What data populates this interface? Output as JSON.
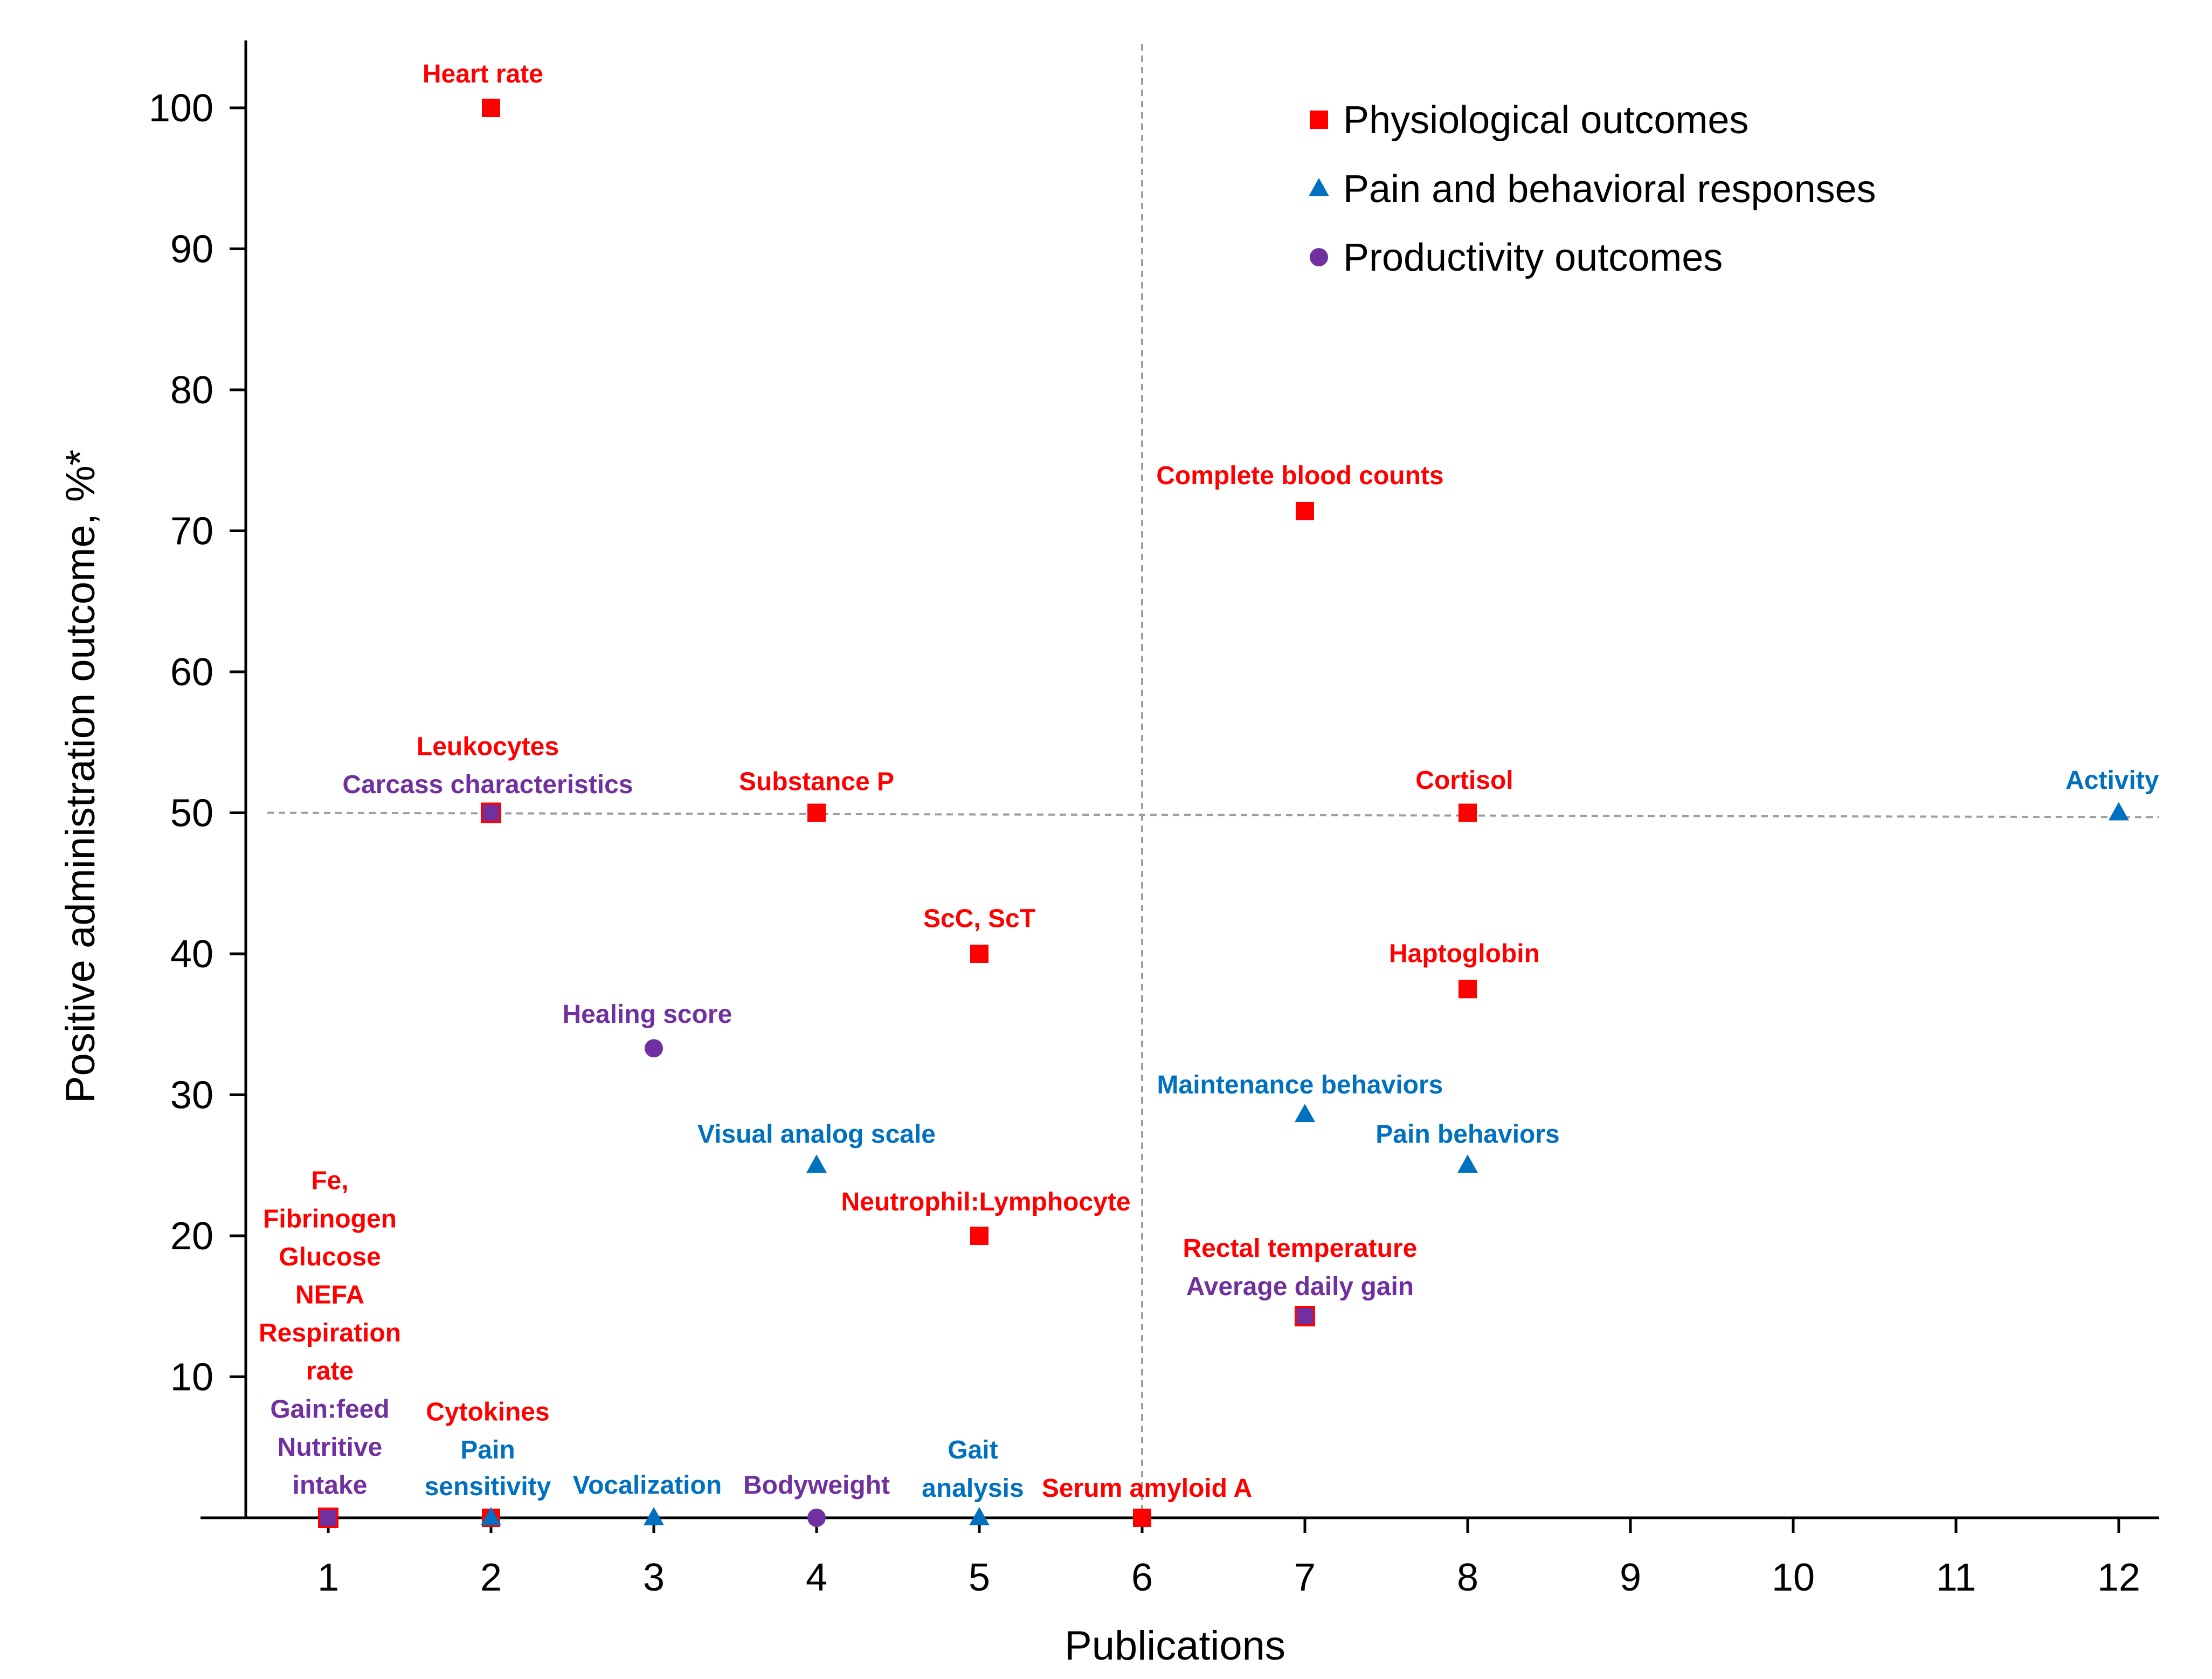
{
  "chart_data": {
    "type": "scatter",
    "title": "",
    "xlabel": "Publications",
    "ylabel": "Positive administration outcome, %*",
    "xlim": [
      0.5,
      12.5
    ],
    "ylim": [
      -3,
      105
    ],
    "xticks": [
      1,
      2,
      3,
      4,
      5,
      6,
      7,
      8,
      9,
      10,
      11,
      12
    ],
    "yticks": [
      10,
      20,
      30,
      40,
      50,
      60,
      70,
      80,
      90,
      100
    ],
    "reference_lines": {
      "x": 6,
      "y": 50
    },
    "legend_position": "top-right",
    "colors": {
      "physiological": "#ff0000",
      "pain": "#0070c0",
      "productivity": "#7030a0"
    },
    "series": [
      {
        "key": "physiological",
        "name": "Physiological outcomes",
        "marker": "square"
      },
      {
        "key": "pain",
        "name": "Pain and behavioral responses",
        "marker": "triangle"
      },
      {
        "key": "productivity",
        "name": "Productivity outcomes",
        "marker": "circle"
      }
    ],
    "points": [
      {
        "x": 2,
        "y": 100,
        "series": "physiological"
      },
      {
        "x": 7,
        "y": 71.4,
        "series": "physiological"
      },
      {
        "x": 2,
        "y": 50,
        "series": "physiological",
        "fill": "productivity"
      },
      {
        "x": 4,
        "y": 50,
        "series": "physiological"
      },
      {
        "x": 8,
        "y": 50,
        "series": "physiological"
      },
      {
        "x": 12,
        "y": 50,
        "series": "pain"
      },
      {
        "x": 5,
        "y": 40,
        "series": "physiological"
      },
      {
        "x": 8,
        "y": 37.5,
        "series": "physiological"
      },
      {
        "x": 3,
        "y": 33.3,
        "series": "productivity"
      },
      {
        "x": 7,
        "y": 28.6,
        "series": "pain"
      },
      {
        "x": 4,
        "y": 25,
        "series": "pain"
      },
      {
        "x": 8,
        "y": 25,
        "series": "pain"
      },
      {
        "x": 5,
        "y": 20,
        "series": "physiological"
      },
      {
        "x": 7,
        "y": 14.3,
        "series": "physiological",
        "fill": "productivity"
      },
      {
        "x": 1,
        "y": 0,
        "series": "physiological",
        "fill": "productivity"
      },
      {
        "x": 2,
        "y": 0,
        "series": "physiological"
      },
      {
        "x": 2,
        "y": 0,
        "series": "pain"
      },
      {
        "x": 3,
        "y": 0,
        "series": "pain"
      },
      {
        "x": 4,
        "y": 0,
        "series": "productivity"
      },
      {
        "x": 5,
        "y": 0,
        "series": "pain"
      },
      {
        "x": 6,
        "y": 0,
        "series": "physiological"
      }
    ],
    "annotations": [
      {
        "text": "Heart rate",
        "x": 1.95,
        "y": 101.8,
        "series": "physiological"
      },
      {
        "text": "Complete blood counts",
        "x": 6.97,
        "y": 73.3,
        "series": "physiological"
      },
      {
        "text": "Leukocytes",
        "x": 1.98,
        "y": 54.1,
        "series": "physiological"
      },
      {
        "text": "Carcass characteristics",
        "x": 1.98,
        "y": 51.4,
        "series": "productivity"
      },
      {
        "text": "Substance P",
        "x": 4.0,
        "y": 51.6,
        "series": "physiological"
      },
      {
        "text": "Cortisol",
        "x": 7.98,
        "y": 51.7,
        "series": "physiological"
      },
      {
        "text": "Activity",
        "x": 11.96,
        "y": 51.7,
        "series": "pain"
      },
      {
        "text": "ScC, ScT",
        "x": 5.0,
        "y": 41.9,
        "series": "physiological"
      },
      {
        "text": "Haptoglobin",
        "x": 7.98,
        "y": 39.4,
        "series": "physiological"
      },
      {
        "text": "Healing score",
        "x": 2.96,
        "y": 35.1,
        "series": "productivity"
      },
      {
        "text": "Maintenance behaviors",
        "x": 6.97,
        "y": 30.1,
        "series": "pain"
      },
      {
        "text": "Visual analog scale",
        "x": 4.0,
        "y": 26.6,
        "series": "pain"
      },
      {
        "text": "Pain behaviors",
        "x": 8.0,
        "y": 26.6,
        "series": "pain"
      },
      {
        "text": "Neutrophil:Lymphocyte",
        "x": 5.04,
        "y": 21.8,
        "series": "physiological"
      },
      {
        "text": "Rectal temperature",
        "x": 6.97,
        "y": 18.5,
        "series": "physiological"
      },
      {
        "text": "Average daily gain",
        "x": 6.97,
        "y": 15.8,
        "series": "productivity"
      },
      {
        "text": "Fe,",
        "x": 1.01,
        "y": 23.3,
        "series": "physiological"
      },
      {
        "text": "Fibrinogen",
        "x": 1.01,
        "y": 20.6,
        "series": "physiological"
      },
      {
        "text": "Glucose",
        "x": 1.01,
        "y": 17.9,
        "series": "physiological"
      },
      {
        "text": "NEFA",
        "x": 1.01,
        "y": 15.2,
        "series": "physiological"
      },
      {
        "text": "Respiration",
        "x": 1.01,
        "y": 12.5,
        "series": "physiological"
      },
      {
        "text": "rate",
        "x": 1.01,
        "y": 9.8,
        "series": "physiological"
      },
      {
        "text": "Gain:feed",
        "x": 1.01,
        "y": 7.1,
        "series": "productivity"
      },
      {
        "text": "Nutritive",
        "x": 1.01,
        "y": 4.4,
        "series": "productivity"
      },
      {
        "text": "intake",
        "x": 1.01,
        "y": 1.7,
        "series": "productivity"
      },
      {
        "text": "Cytokines",
        "x": 1.98,
        "y": 6.9,
        "series": "physiological"
      },
      {
        "text": "Pain",
        "x": 1.98,
        "y": 4.2,
        "series": "pain"
      },
      {
        "text": "sensitivity",
        "x": 1.98,
        "y": 1.6,
        "series": "pain"
      },
      {
        "text": "Vocalization",
        "x": 2.96,
        "y": 1.7,
        "series": "pain"
      },
      {
        "text": "Bodyweight",
        "x": 4.0,
        "y": 1.7,
        "series": "productivity"
      },
      {
        "text": "Gait",
        "x": 4.96,
        "y": 4.2,
        "series": "pain"
      },
      {
        "text": "analysis",
        "x": 4.96,
        "y": 1.5,
        "series": "pain"
      },
      {
        "text": "Serum amyloid A",
        "x": 6.03,
        "y": 1.5,
        "series": "physiological"
      }
    ]
  }
}
